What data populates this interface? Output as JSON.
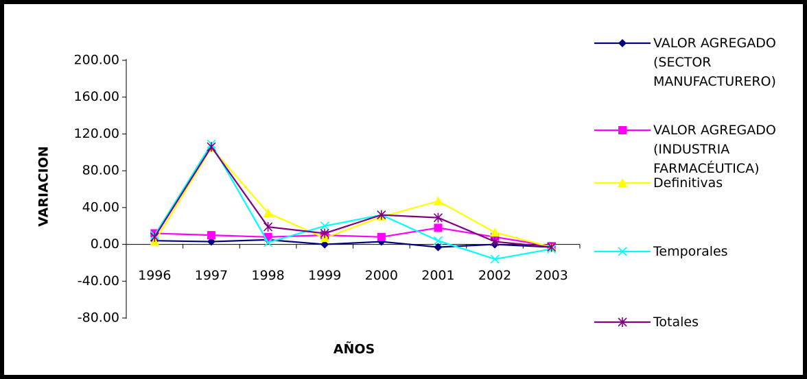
{
  "chart_data": {
    "type": "line",
    "y_label": "VARIACION",
    "x_label": "AÑOS",
    "categories": [
      "1996",
      "1997",
      "1998",
      "1999",
      "2000",
      "2001",
      "2002",
      "2003"
    ],
    "ylim": [
      -80,
      200
    ],
    "yticks": [
      {
        "value": -80,
        "label": "-80.00"
      },
      {
        "value": -40,
        "label": "-40.00"
      },
      {
        "value": 0,
        "label": "0.00"
      },
      {
        "value": 40,
        "label": "40.00"
      },
      {
        "value": 80,
        "label": "80.00"
      },
      {
        "value": 120,
        "label": "120.00"
      },
      {
        "value": 160,
        "label": "160.00"
      },
      {
        "value": 200,
        "label": "200.00"
      }
    ],
    "legend_position": "right",
    "series": [
      {
        "name": "VALOR AGREGADO (SECTOR MANUFACTURERO)",
        "color": "#000080",
        "marker": "diamond",
        "values": [
          4,
          3,
          5,
          0,
          3,
          -3,
          0,
          -3
        ]
      },
      {
        "name": "VALOR AGREGADO (INDUSTRIA FARMACÉUTICA)",
        "color": "#ff00ff",
        "marker": "square",
        "values": [
          12,
          10,
          8,
          10,
          8,
          18,
          8,
          -2
        ]
      },
      {
        "name": "Definitivas",
        "color": "#ffff00",
        "marker": "triangle",
        "values": [
          3,
          105,
          34,
          7,
          30,
          47,
          13,
          -3
        ]
      },
      {
        "name": "Temporales",
        "color": "#00ffff",
        "marker": "x",
        "values": [
          10,
          109,
          2,
          20,
          32,
          4,
          -16,
          -5
        ]
      },
      {
        "name": "Totales",
        "color": "#800080",
        "marker": "star",
        "values": [
          8,
          106,
          19,
          12,
          32,
          29,
          3,
          -3
        ]
      }
    ]
  }
}
